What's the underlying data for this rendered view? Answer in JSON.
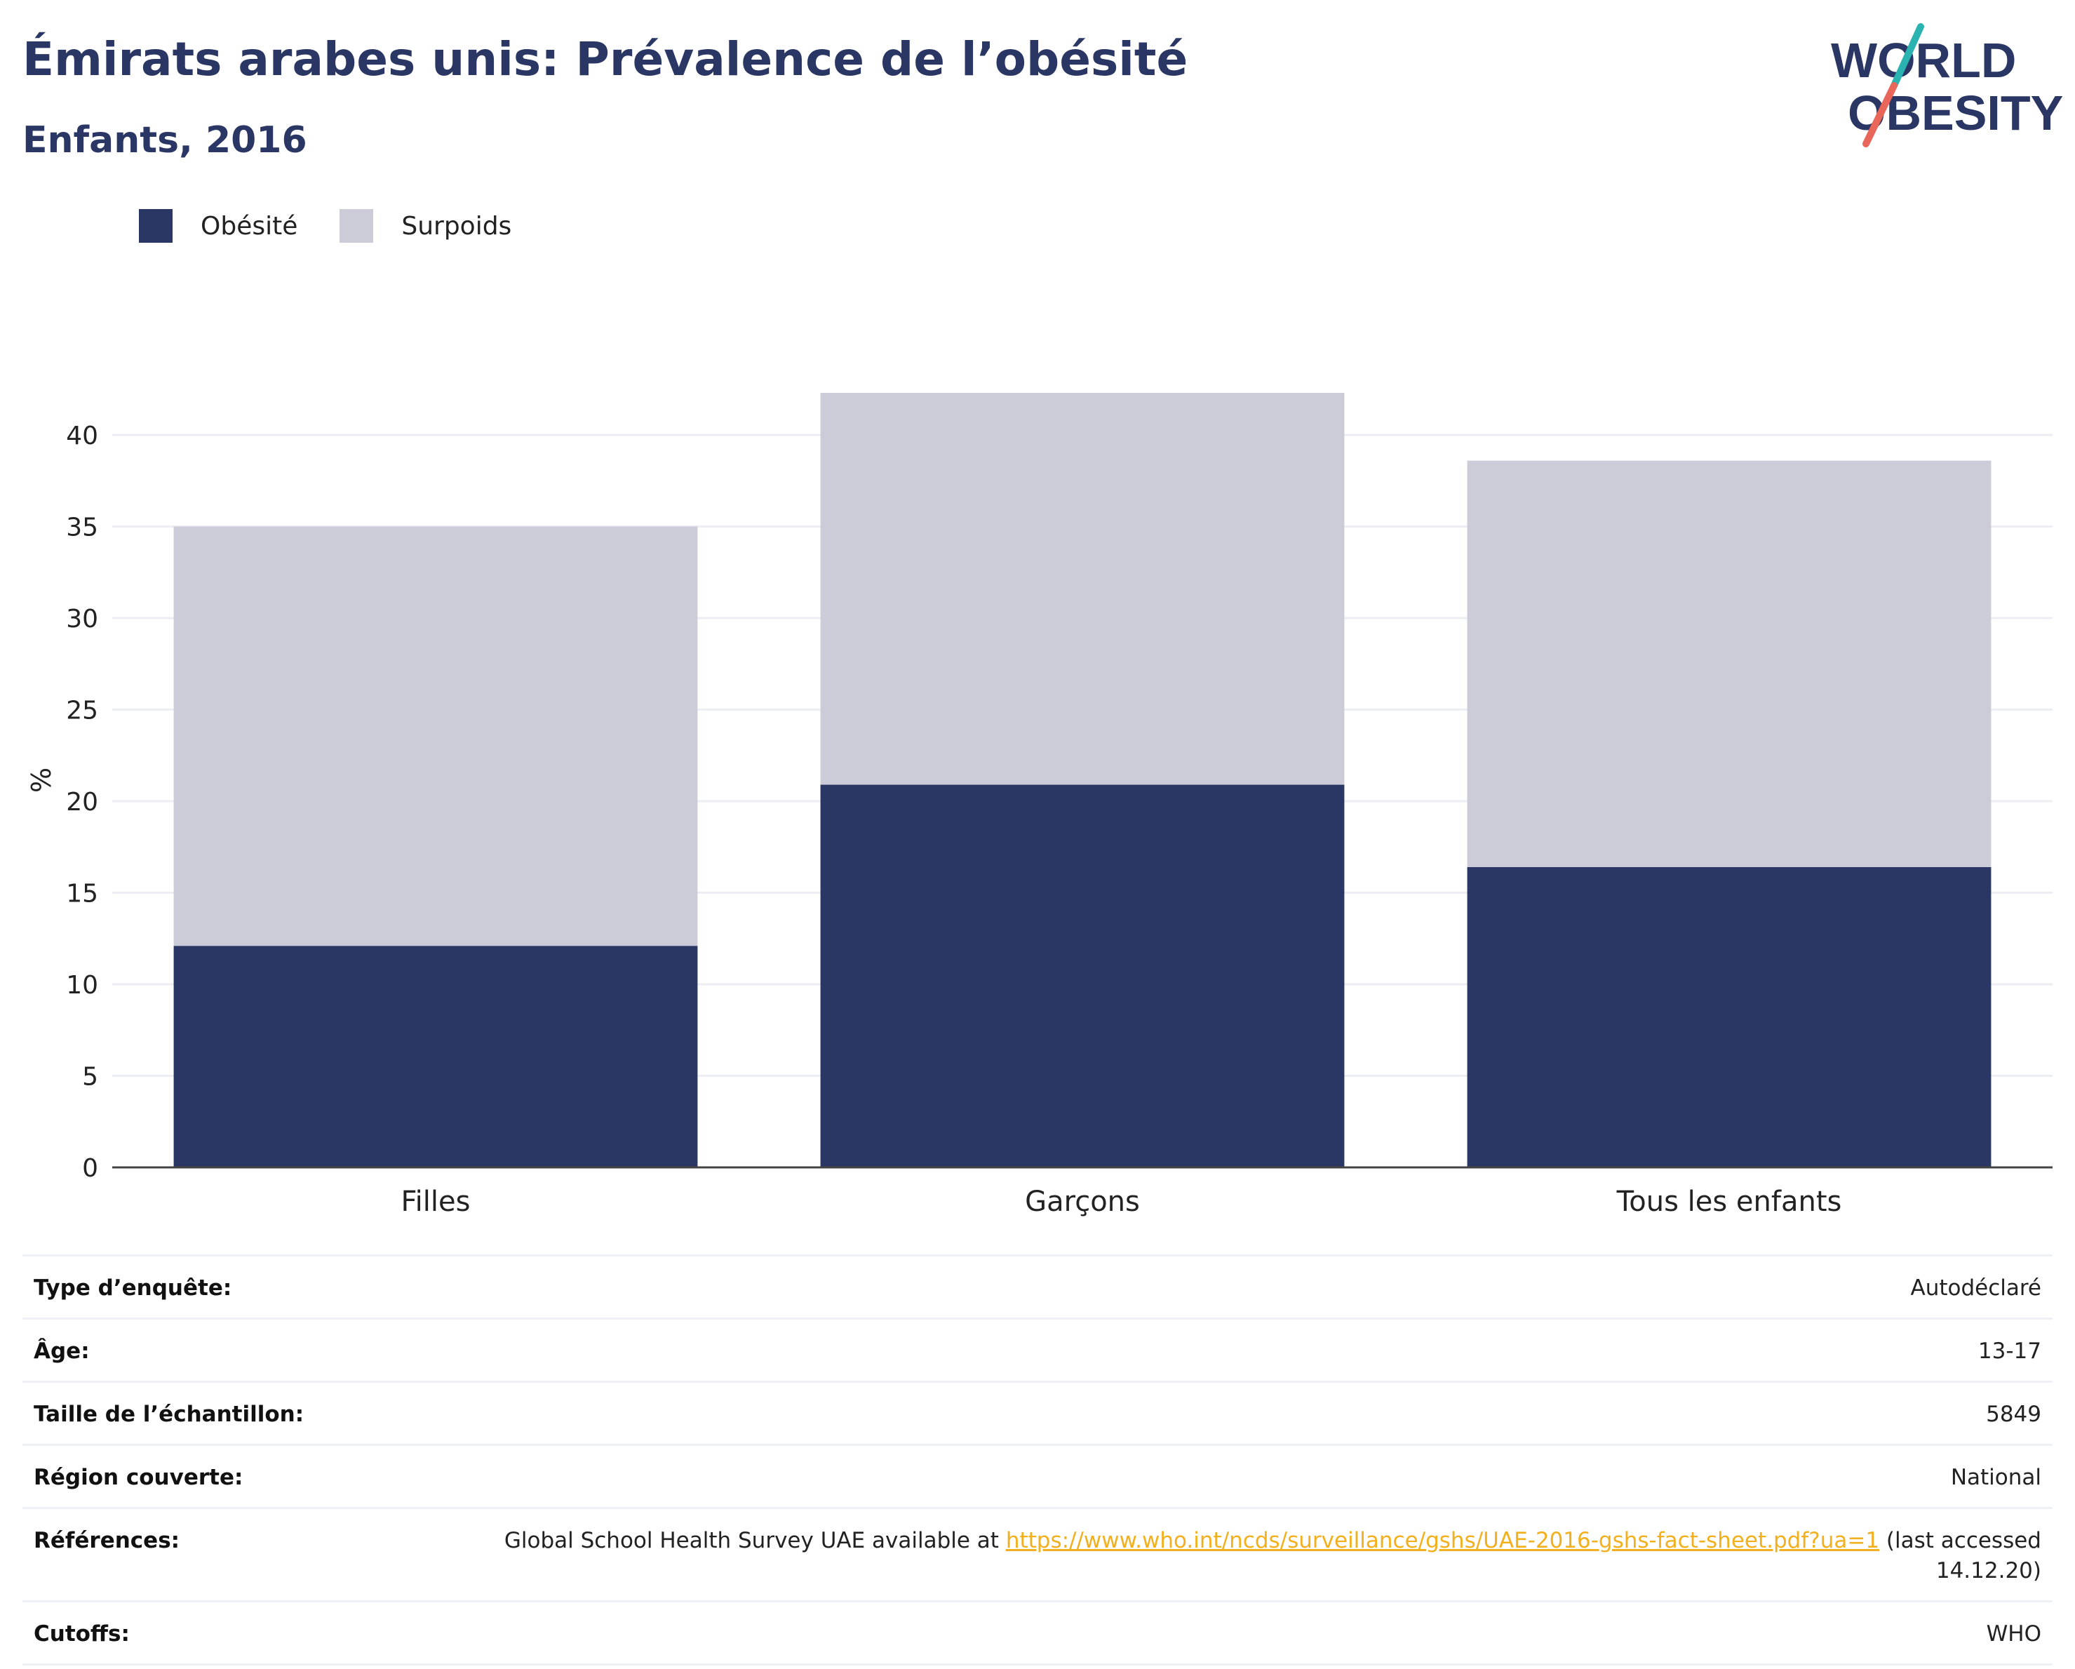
{
  "title": "Émirats arabes unis: Prévalence de l’obésité",
  "subtitle": "Enfants, 2016",
  "logo": {
    "line1": "WORLD",
    "line2": "OBESITY"
  },
  "colors": {
    "obesity": "#2a3663",
    "overweight": "#cbccd8",
    "title": "#2a3663",
    "link": "#f2b01e",
    "grid": "#eceef3"
  },
  "chart_data": {
    "type": "bar",
    "stacked": true,
    "categories": [
      "Filles",
      "Garçons",
      "Tous les enfants"
    ],
    "series": [
      {
        "name": "Obésité",
        "values": [
          12.1,
          20.9,
          16.4
        ]
      },
      {
        "name": "Surpoids",
        "values": [
          22.9,
          21.4,
          22.2
        ]
      }
    ],
    "ylabel": "%",
    "xlabel": "",
    "ylim": [
      0,
      42.3
    ],
    "yticks": [
      0,
      5,
      10,
      15,
      20,
      25,
      30,
      35,
      40
    ],
    "grid": true,
    "legend_position": "top-left"
  },
  "meta": [
    {
      "label": "Type d’enquête:",
      "value": "Autodéclaré"
    },
    {
      "label": "Âge:",
      "value": "13-17"
    },
    {
      "label": "Taille de l’échantillon:",
      "value": "5849"
    },
    {
      "label": "Région couverte:",
      "value": "National"
    },
    {
      "label": "Références:",
      "value_pre": "Global School Health Survey UAE available at ",
      "link": "https://www.who.int/ncds/surveillance/gshs/UAE-2016-gshs-fact-sheet.pdf?ua=1",
      "value_post": " (last accessed 14.12.20)"
    },
    {
      "label": "Cutoffs:",
      "value": "WHO"
    }
  ]
}
